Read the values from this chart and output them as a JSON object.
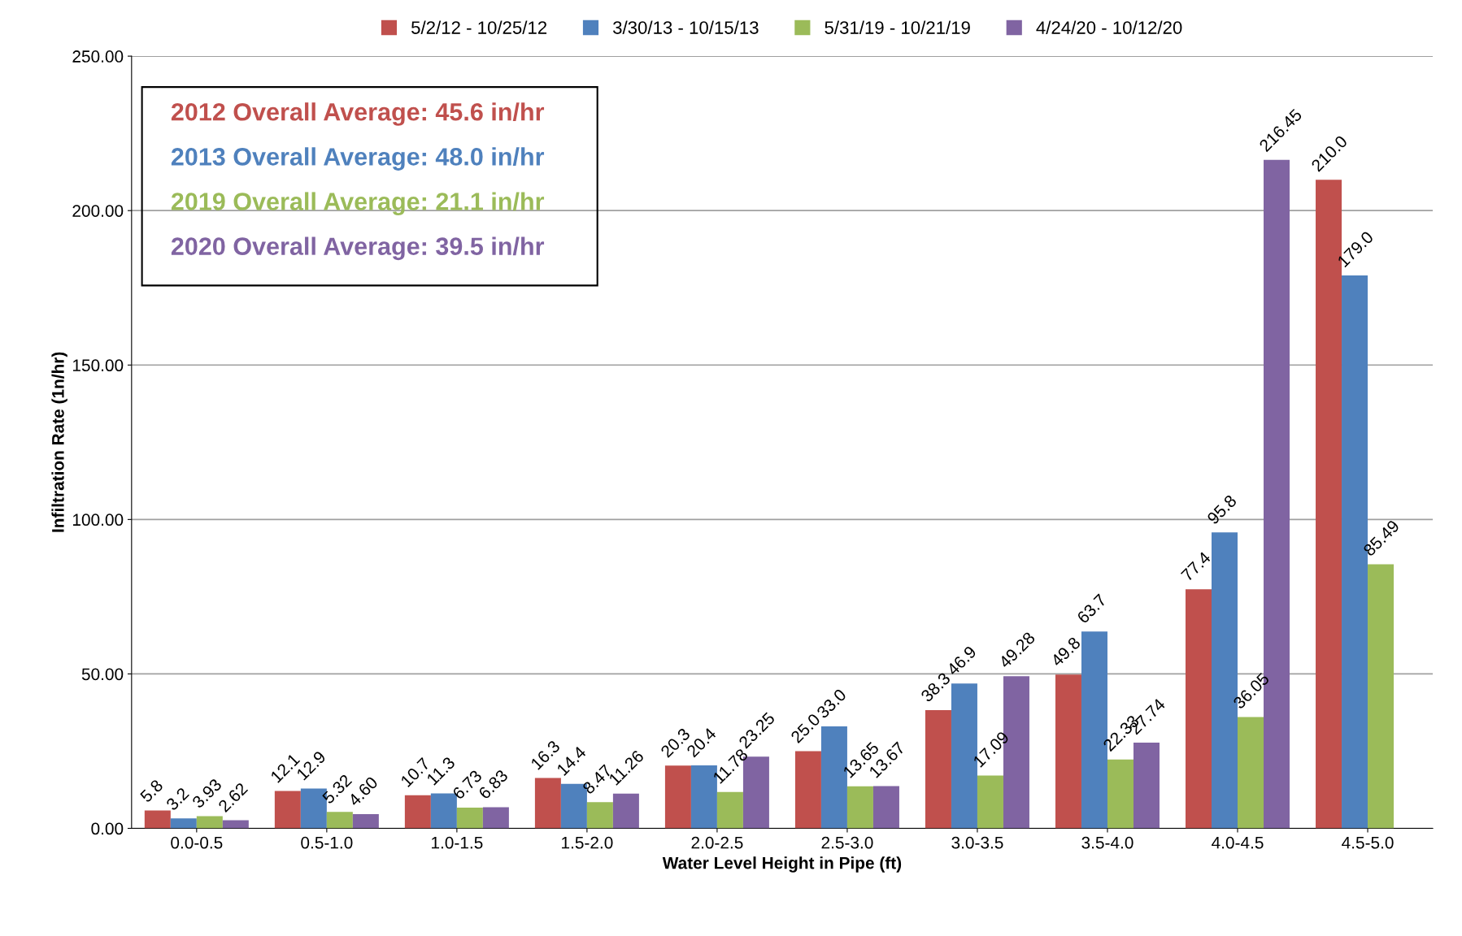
{
  "chart_data": {
    "type": "bar",
    "xlabel": "Water Level Height in Pipe (ft)",
    "ylabel": "Infiltration Rate (1n/hr)",
    "categories": [
      "0.0-0.5",
      "0.5-1.0",
      "1.0-1.5",
      "1.5-2.0",
      "2.0-2.5",
      "2.5-3.0",
      "3.0-3.5",
      "3.5-4.0",
      "4.0-4.5",
      "4.5-5.0"
    ],
    "series": [
      {
        "name": "5/2/12 - 10/25/12",
        "color": "#c0504d",
        "values": [
          5.8,
          12.1,
          10.7,
          16.3,
          20.3,
          25.0,
          38.3,
          49.8,
          77.4,
          210.0
        ],
        "value_labels": [
          "5.8",
          "12.1",
          "10.7",
          "16.3",
          "20.3",
          "25.0",
          "38.3",
          "49.8",
          "77.4",
          "210.0"
        ]
      },
      {
        "name": "3/30/13 - 10/15/13",
        "color": "#4f81bd",
        "values": [
          3.2,
          12.9,
          11.3,
          14.4,
          20.4,
          33.0,
          46.9,
          63.7,
          95.8,
          179.0
        ],
        "value_labels": [
          "3.2",
          "12.9",
          "11.3",
          "14.4",
          "20.4",
          "33.0",
          "46.9",
          "63.7",
          "95.8",
          "179.0"
        ]
      },
      {
        "name": "5/31/19 - 10/21/19",
        "color": "#9bbb59",
        "values": [
          3.93,
          5.32,
          6.73,
          8.47,
          11.78,
          13.65,
          17.09,
          22.33,
          36.05,
          85.49
        ],
        "value_labels": [
          "3.93",
          "5.32",
          "6.73",
          "8.47",
          "11.78",
          "13.65",
          "17.09",
          "22.33",
          "36.05",
          "85.49"
        ]
      },
      {
        "name": "4/24/20 - 10/12/20",
        "color": "#8064a2",
        "values": [
          2.62,
          4.6,
          6.83,
          11.26,
          23.25,
          13.67,
          49.28,
          27.74,
          216.45,
          null
        ],
        "value_labels": [
          "2.62",
          "4.60",
          "6.83",
          "11.26",
          "23.25",
          "13.67",
          "49.28",
          "27.74",
          "216.45",
          null
        ]
      }
    ],
    "ylim": [
      0,
      250
    ],
    "yticks": [
      {
        "value": 0,
        "label": "0.00"
      },
      {
        "value": 50,
        "label": "50.00"
      },
      {
        "value": 100,
        "label": "100.00"
      },
      {
        "value": 150,
        "label": "150.00"
      },
      {
        "value": 200,
        "label": "200.00"
      },
      {
        "value": 250,
        "label": "250.00"
      }
    ],
    "grid": "y",
    "legend": "top",
    "annotations": [
      "2012 Overall Average: 45.6 in/hr",
      "2013 Overall Average: 48.0 in/hr",
      "2019 Overall Average: 21.1 in/hr",
      "2020 Overall Average: 39.5 in/hr"
    ]
  }
}
